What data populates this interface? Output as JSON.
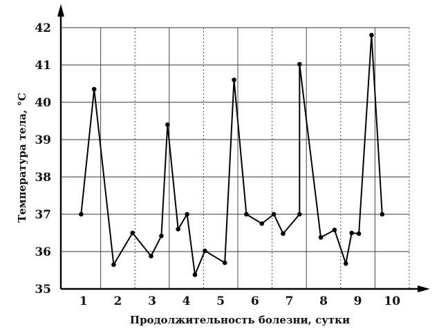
{
  "chart_data": {
    "type": "line",
    "title": "",
    "xlabel": "Продолжительность болезни, сутки",
    "ylabel": "Температура тела, °C",
    "xlim": [
      0.5,
      10.5
    ],
    "ylim": [
      35,
      42
    ],
    "x_ticks": [
      "1",
      "2",
      "3",
      "4",
      "5",
      "6",
      "7",
      "8",
      "9",
      "10"
    ],
    "y_ticks": [
      "35",
      "36",
      "37",
      "38",
      "39",
      "40",
      "41",
      "42"
    ],
    "grid": true,
    "series": [
      {
        "x": [
          0.93,
          1.31,
          1.88,
          2.43,
          2.97,
          3.27,
          3.45,
          3.76,
          4.02,
          4.25,
          4.54,
          5.12,
          5.39,
          5.75,
          6.2,
          6.55,
          6.82,
          7.3,
          7.3,
          7.92,
          8.32,
          8.65,
          8.82,
          9.03,
          9.4,
          9.71
        ],
        "values": [
          37.0,
          40.35,
          35.65,
          36.5,
          35.88,
          36.42,
          39.4,
          36.6,
          37.0,
          35.38,
          36.02,
          35.7,
          40.6,
          37.0,
          36.75,
          37.0,
          36.48,
          37.0,
          41.02,
          36.38,
          36.58,
          35.68,
          36.5,
          36.48,
          41.8,
          37.0
        ]
      }
    ]
  }
}
